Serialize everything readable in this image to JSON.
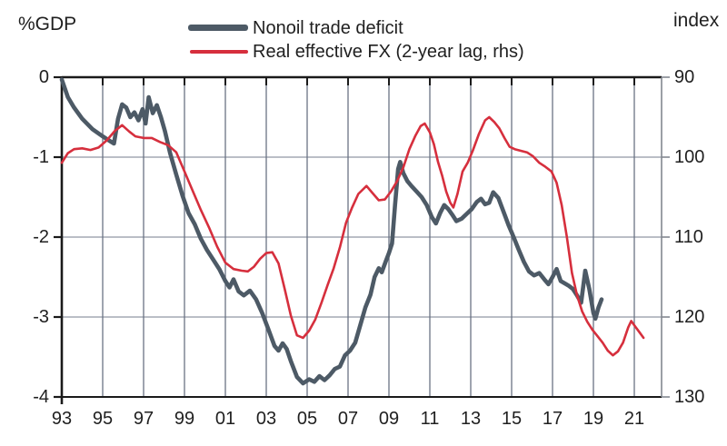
{
  "axis_titles": {
    "left": "%GDP",
    "right": "index"
  },
  "legend": [
    {
      "label": "Nonoil trade deficit",
      "color": "#4d5a66",
      "thickness": 7
    },
    {
      "label": "Real effective FX (2-year lag, rhs)",
      "color": "#d62f3d",
      "thickness": 3.5
    }
  ],
  "colors": {
    "deficit_line": "#4d5a66",
    "fx_line": "#d62f3d",
    "axis": "#1a1a1a",
    "right_axis": "#82878f",
    "v_grid": "#6b7384",
    "h_grid": "#9097a3"
  },
  "chart_data": {
    "type": "line",
    "title": "",
    "x_axis": {
      "range": [
        1993,
        2022.3
      ],
      "tick_years": [
        1993,
        1995,
        1997,
        1999,
        2001,
        2003,
        2005,
        2007,
        2009,
        2011,
        2013,
        2015,
        2017,
        2019,
        2021
      ],
      "tick_labels": [
        "93",
        "95",
        "97",
        "99",
        "01",
        "03",
        "05",
        "07",
        "09",
        "11",
        "13",
        "15",
        "17",
        "19",
        "21"
      ]
    },
    "left_y_axis": {
      "label": "%GDP",
      "ticks": [
        0,
        -1,
        -2,
        -3,
        -4
      ],
      "tick_labels": [
        "0",
        "-1",
        "-2",
        "-3",
        "-4"
      ],
      "range": [
        -4,
        0
      ]
    },
    "right_y_axis": {
      "label": "index",
      "ticks": [
        90,
        100,
        110,
        120,
        130
      ],
      "tick_labels": [
        "90",
        "100",
        "110",
        "120",
        "130"
      ],
      "range": [
        90,
        130
      ],
      "inverted": true
    },
    "gridlines": {
      "vertical_years": [
        1995,
        1997,
        1999,
        2001,
        2003,
        2005,
        2007,
        2009,
        2011,
        2013,
        2015,
        2017,
        2019,
        2021
      ],
      "horizontal_left_values": [
        -1,
        -2,
        -3
      ]
    },
    "legend_position": "top-center",
    "series": [
      {
        "name": "Nonoil trade deficit",
        "axis": "left",
        "color": "#4d5a66",
        "width": 4.6,
        "points": [
          [
            1993.0,
            -0.03
          ],
          [
            1993.3,
            -0.25
          ],
          [
            1993.6,
            -0.38
          ],
          [
            1994.0,
            -0.52
          ],
          [
            1994.5,
            -0.65
          ],
          [
            1995.0,
            -0.74
          ],
          [
            1995.3,
            -0.79
          ],
          [
            1995.55,
            -0.83
          ],
          [
            1995.75,
            -0.52
          ],
          [
            1995.95,
            -0.34
          ],
          [
            1996.15,
            -0.38
          ],
          [
            1996.35,
            -0.5
          ],
          [
            1996.55,
            -0.44
          ],
          [
            1996.75,
            -0.54
          ],
          [
            1996.95,
            -0.4
          ],
          [
            1997.1,
            -0.58
          ],
          [
            1997.25,
            -0.25
          ],
          [
            1997.45,
            -0.45
          ],
          [
            1997.65,
            -0.35
          ],
          [
            1997.85,
            -0.5
          ],
          [
            1998.05,
            -0.68
          ],
          [
            1998.3,
            -0.95
          ],
          [
            1998.6,
            -1.22
          ],
          [
            1998.9,
            -1.48
          ],
          [
            1999.2,
            -1.7
          ],
          [
            1999.5,
            -1.84
          ],
          [
            1999.8,
            -2.02
          ],
          [
            2000.1,
            -2.16
          ],
          [
            2000.4,
            -2.28
          ],
          [
            2000.7,
            -2.4
          ],
          [
            2001.0,
            -2.55
          ],
          [
            2001.2,
            -2.63
          ],
          [
            2001.4,
            -2.53
          ],
          [
            2001.65,
            -2.68
          ],
          [
            2001.9,
            -2.73
          ],
          [
            2002.2,
            -2.67
          ],
          [
            2002.5,
            -2.78
          ],
          [
            2002.8,
            -2.95
          ],
          [
            2003.1,
            -3.15
          ],
          [
            2003.4,
            -3.36
          ],
          [
            2003.6,
            -3.42
          ],
          [
            2003.8,
            -3.33
          ],
          [
            2004.0,
            -3.4
          ],
          [
            2004.2,
            -3.55
          ],
          [
            2004.5,
            -3.75
          ],
          [
            2004.8,
            -3.83
          ],
          [
            2005.1,
            -3.78
          ],
          [
            2005.35,
            -3.81
          ],
          [
            2005.6,
            -3.74
          ],
          [
            2005.85,
            -3.79
          ],
          [
            2006.1,
            -3.73
          ],
          [
            2006.35,
            -3.65
          ],
          [
            2006.6,
            -3.62
          ],
          [
            2006.85,
            -3.48
          ],
          [
            2007.1,
            -3.42
          ],
          [
            2007.35,
            -3.32
          ],
          [
            2007.6,
            -3.1
          ],
          [
            2007.85,
            -2.88
          ],
          [
            2008.1,
            -2.72
          ],
          [
            2008.3,
            -2.5
          ],
          [
            2008.5,
            -2.39
          ],
          [
            2008.65,
            -2.44
          ],
          [
            2008.85,
            -2.3
          ],
          [
            2009.0,
            -2.2
          ],
          [
            2009.15,
            -2.08
          ],
          [
            2009.3,
            -1.6
          ],
          [
            2009.45,
            -1.15
          ],
          [
            2009.55,
            -1.06
          ],
          [
            2009.7,
            -1.2
          ],
          [
            2009.9,
            -1.3
          ],
          [
            2010.1,
            -1.36
          ],
          [
            2010.35,
            -1.43
          ],
          [
            2010.6,
            -1.5
          ],
          [
            2010.85,
            -1.6
          ],
          [
            2011.1,
            -1.75
          ],
          [
            2011.3,
            -1.83
          ],
          [
            2011.5,
            -1.7
          ],
          [
            2011.7,
            -1.6
          ],
          [
            2011.9,
            -1.65
          ],
          [
            2012.1,
            -1.72
          ],
          [
            2012.3,
            -1.8
          ],
          [
            2012.55,
            -1.77
          ],
          [
            2012.8,
            -1.71
          ],
          [
            2013.05,
            -1.65
          ],
          [
            2013.3,
            -1.56
          ],
          [
            2013.5,
            -1.52
          ],
          [
            2013.7,
            -1.59
          ],
          [
            2013.9,
            -1.57
          ],
          [
            2014.1,
            -1.44
          ],
          [
            2014.35,
            -1.51
          ],
          [
            2014.6,
            -1.68
          ],
          [
            2014.85,
            -1.85
          ],
          [
            2015.1,
            -2.0
          ],
          [
            2015.35,
            -2.16
          ],
          [
            2015.6,
            -2.31
          ],
          [
            2015.85,
            -2.43
          ],
          [
            2016.1,
            -2.48
          ],
          [
            2016.35,
            -2.45
          ],
          [
            2016.6,
            -2.53
          ],
          [
            2016.8,
            -2.59
          ],
          [
            2017.0,
            -2.5
          ],
          [
            2017.2,
            -2.4
          ],
          [
            2017.4,
            -2.55
          ],
          [
            2017.6,
            -2.58
          ],
          [
            2017.8,
            -2.61
          ],
          [
            2018.0,
            -2.65
          ],
          [
            2018.2,
            -2.73
          ],
          [
            2018.4,
            -2.82
          ],
          [
            2018.6,
            -2.42
          ],
          [
            2018.8,
            -2.65
          ],
          [
            2019.0,
            -2.95
          ],
          [
            2019.1,
            -3.02
          ],
          [
            2019.25,
            -2.88
          ],
          [
            2019.4,
            -2.78
          ]
        ]
      },
      {
        "name": "Real effective FX (2-year lag, rhs)",
        "axis": "right",
        "color": "#d62f3d",
        "width": 2.6,
        "points": [
          [
            1993.0,
            100.7
          ],
          [
            1993.3,
            99.5
          ],
          [
            1993.6,
            99.0
          ],
          [
            1994.0,
            98.9
          ],
          [
            1994.4,
            99.1
          ],
          [
            1994.8,
            98.8
          ],
          [
            1995.2,
            97.9
          ],
          [
            1995.6,
            96.7
          ],
          [
            1995.95,
            96.0
          ],
          [
            1996.3,
            96.8
          ],
          [
            1996.6,
            97.4
          ],
          [
            1997.0,
            97.6
          ],
          [
            1997.4,
            97.6
          ],
          [
            1997.8,
            98.1
          ],
          [
            1998.2,
            98.5
          ],
          [
            1998.6,
            99.4
          ],
          [
            1999.0,
            101.8
          ],
          [
            1999.4,
            104.2
          ],
          [
            1999.8,
            106.6
          ],
          [
            2000.2,
            108.8
          ],
          [
            2000.6,
            111.2
          ],
          [
            2001.0,
            113.2
          ],
          [
            2001.4,
            114.0
          ],
          [
            2001.8,
            114.2
          ],
          [
            2002.1,
            114.3
          ],
          [
            2002.4,
            113.7
          ],
          [
            2002.7,
            112.7
          ],
          [
            2003.0,
            112.0
          ],
          [
            2003.3,
            111.9
          ],
          [
            2003.6,
            113.3
          ],
          [
            2003.9,
            116.5
          ],
          [
            2004.2,
            119.8
          ],
          [
            2004.5,
            122.3
          ],
          [
            2004.8,
            122.6
          ],
          [
            2005.1,
            121.7
          ],
          [
            2005.4,
            120.3
          ],
          [
            2005.7,
            118.2
          ],
          [
            2006.0,
            116.0
          ],
          [
            2006.3,
            113.9
          ],
          [
            2006.6,
            111.3
          ],
          [
            2006.9,
            108.2
          ],
          [
            2007.2,
            106.3
          ],
          [
            2007.5,
            104.6
          ],
          [
            2007.9,
            103.6
          ],
          [
            2008.2,
            104.5
          ],
          [
            2008.5,
            105.4
          ],
          [
            2008.8,
            105.3
          ],
          [
            2009.1,
            104.3
          ],
          [
            2009.4,
            103.0
          ],
          [
            2009.7,
            101.3
          ],
          [
            2010.0,
            99.0
          ],
          [
            2010.3,
            97.3
          ],
          [
            2010.55,
            96.1
          ],
          [
            2010.75,
            95.8
          ],
          [
            2011.0,
            96.9
          ],
          [
            2011.2,
            98.4
          ],
          [
            2011.4,
            100.6
          ],
          [
            2011.6,
            102.3
          ],
          [
            2011.8,
            104.3
          ],
          [
            2012.0,
            105.7
          ],
          [
            2012.15,
            106.3
          ],
          [
            2012.35,
            104.6
          ],
          [
            2012.6,
            101.8
          ],
          [
            2012.85,
            100.7
          ],
          [
            2013.1,
            99.2
          ],
          [
            2013.4,
            97.1
          ],
          [
            2013.7,
            95.4
          ],
          [
            2013.9,
            95.0
          ],
          [
            2014.15,
            95.6
          ],
          [
            2014.4,
            96.4
          ],
          [
            2014.65,
            97.6
          ],
          [
            2014.9,
            98.7
          ],
          [
            2015.15,
            99.0
          ],
          [
            2015.45,
            99.2
          ],
          [
            2015.75,
            99.4
          ],
          [
            2016.05,
            99.9
          ],
          [
            2016.35,
            100.7
          ],
          [
            2016.65,
            101.2
          ],
          [
            2016.95,
            101.8
          ],
          [
            2017.2,
            103.2
          ],
          [
            2017.45,
            106.0
          ],
          [
            2017.7,
            110.0
          ],
          [
            2017.95,
            114.5
          ],
          [
            2018.2,
            117.3
          ],
          [
            2018.45,
            119.3
          ],
          [
            2018.7,
            120.6
          ],
          [
            2018.95,
            121.6
          ],
          [
            2019.2,
            122.4
          ],
          [
            2019.45,
            123.2
          ],
          [
            2019.7,
            124.2
          ],
          [
            2019.95,
            124.8
          ],
          [
            2020.2,
            124.3
          ],
          [
            2020.45,
            123.2
          ],
          [
            2020.7,
            121.3
          ],
          [
            2020.85,
            120.5
          ],
          [
            2021.05,
            121.2
          ],
          [
            2021.25,
            121.9
          ],
          [
            2021.45,
            122.6
          ]
        ]
      }
    ]
  }
}
